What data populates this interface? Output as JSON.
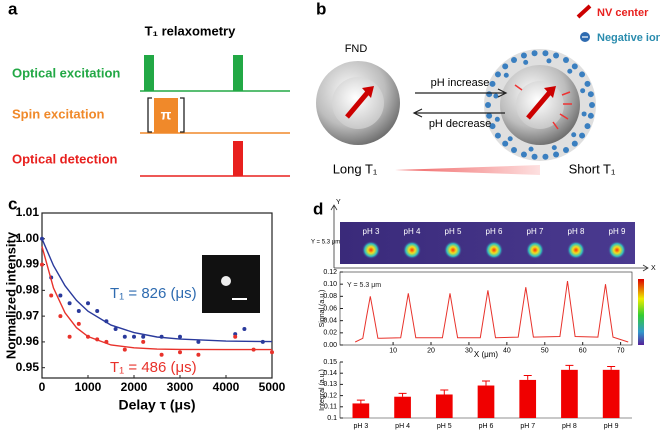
{
  "panels": {
    "a": {
      "label": "a",
      "title": "T₁ relaxometry",
      "rows": [
        "Optical excitation",
        "Spin excitation",
        "Optical detection"
      ],
      "pulse": "π"
    },
    "b": {
      "label": "b",
      "sphere": "FND",
      "legend": [
        "NV center",
        "Negative ion"
      ],
      "arrows": [
        "pH increase",
        "pH decrease"
      ],
      "ends": [
        "Long T₁",
        "Short T₁"
      ]
    },
    "c": {
      "label": "c"
    },
    "d": {
      "label": "d",
      "axes": [
        "Y",
        "X"
      ],
      "row_label": "Y = 5.3 μm",
      "strip": [
        "pH 3",
        "pH 4",
        "pH 5",
        "pH 6",
        "pH 7",
        "pH 8",
        "pH 9"
      ]
    }
  },
  "chart_data": [
    {
      "type": "scatter",
      "x_label": "Delay τ (μs)",
      "y_label": "Normalized intensity",
      "xlim": [
        0,
        5000
      ],
      "ylim": [
        0.946,
        1.01
      ],
      "xticks": [
        0,
        1000,
        2000,
        3000,
        4000,
        5000
      ],
      "yticks": [
        0.95,
        0.96,
        0.97,
        0.98,
        0.99,
        {
          "value": 1.0,
          "label": "1.00"
        },
        1.01
      ],
      "annotations": [
        {
          "text": "T₁ = 826 (μs)",
          "color": "#2e6bb0"
        },
        {
          "text": "T₁ = 486 (μs)",
          "color": "#e8322b"
        }
      ],
      "series": [
        {
          "style": "markers",
          "color": "#2a3a9c",
          "x": [
            0,
            200,
            400,
            600,
            800,
            1000,
            1200,
            1400,
            1600,
            1800,
            2000,
            2200,
            2600,
            3000,
            3400,
            4200,
            4400,
            4800
          ],
          "values": [
            1.0,
            0.985,
            0.978,
            0.975,
            0.972,
            0.975,
            0.972,
            0.968,
            0.965,
            0.962,
            0.962,
            0.962,
            0.962,
            0.962,
            0.96,
            0.963,
            0.965,
            0.96
          ]
        },
        {
          "style": "markers",
          "color": "#e8322b",
          "x": [
            0,
            200,
            400,
            600,
            800,
            1000,
            1200,
            1400,
            1800,
            2200,
            2600,
            3000,
            3400,
            4200,
            4600,
            5000
          ],
          "values": [
            0.99,
            0.978,
            0.97,
            0.962,
            0.967,
            0.962,
            0.961,
            0.96,
            0.957,
            0.96,
            0.955,
            0.956,
            0.955,
            0.962,
            0.957,
            0.956
          ]
        },
        {
          "style": "line",
          "color": "#2a3a9c",
          "x": [
            0,
            250,
            500,
            750,
            1000,
            1500,
            2000,
            2500,
            3000,
            4000,
            5000
          ],
          "values": [
            1.0,
            0.9896,
            0.9818,
            0.9761,
            0.9719,
            0.9665,
            0.9636,
            0.9619,
            0.9611,
            0.9603,
            0.9601
          ]
        },
        {
          "style": "line",
          "color": "#e8322b",
          "x": [
            0,
            250,
            500,
            750,
            1000,
            1500,
            2000,
            2500,
            3000,
            4000,
            5000
          ],
          "values": [
            0.997,
            0.9809,
            0.9713,
            0.9655,
            0.9621,
            0.9588,
            0.9577,
            0.9572,
            0.9571,
            0.957,
            0.957
          ]
        }
      ]
    },
    {
      "type": "line",
      "x_label": "X (μm)",
      "y_label": "Signal (a.u.)",
      "xlim": [
        -4,
        73
      ],
      "ylim": [
        0,
        0.12
      ],
      "xticks": [
        10,
        20,
        30,
        40,
        50,
        60,
        70
      ],
      "yticks": [
        {
          "value": 0,
          "label": "0.00"
        },
        {
          "value": 0.02,
          "label": "0.02"
        },
        {
          "value": 0.04,
          "label": "0.04"
        },
        {
          "value": 0.06,
          "label": "0.06"
        },
        {
          "value": 0.08,
          "label": "0.08"
        },
        {
          "value": 0.1,
          "label": "0.10"
        },
        {
          "value": 0.12,
          "label": "0.12"
        }
      ],
      "annotations": [
        {
          "text": "Y = 5.3 μm",
          "color": "#222"
        }
      ],
      "series": [
        {
          "style": "line",
          "color": "#e8322b",
          "x": [
            0,
            2,
            3,
            4,
            5,
            6,
            12,
            13,
            14,
            15,
            16,
            23,
            24,
            25,
            26,
            27,
            33,
            34,
            35,
            36,
            37,
            43,
            44,
            45,
            46,
            47,
            54,
            55,
            56,
            57,
            58,
            64,
            65,
            66,
            67,
            68,
            72
          ],
          "values": [
            0.005,
            0.011,
            0.046,
            0.08,
            0.046,
            0.011,
            0.012,
            0.048,
            0.085,
            0.048,
            0.012,
            0.012,
            0.048,
            0.085,
            0.048,
            0.012,
            0.012,
            0.051,
            0.09,
            0.051,
            0.012,
            0.013,
            0.054,
            0.095,
            0.054,
            0.013,
            0.014,
            0.059,
            0.105,
            0.059,
            0.014,
            0.013,
            0.056,
            0.1,
            0.056,
            0.013,
            0.005
          ]
        }
      ]
    },
    {
      "type": "bar",
      "y_label": "Integral (a.u.)",
      "ylim": [
        0.1,
        0.15
      ],
      "yticks": [
        0.1,
        0.11,
        0.12,
        0.13,
        0.14,
        0.15
      ],
      "categories": [
        "pH 3",
        "pH 4",
        "pH 5",
        "pH 6",
        "pH 7",
        "pH 8",
        "pH 9"
      ],
      "series": [
        {
          "color": "#f00000",
          "values": [
            0.113,
            0.119,
            0.121,
            0.129,
            0.134,
            0.143,
            0.143
          ],
          "errors": [
            0.003,
            0.003,
            0.004,
            0.004,
            0.004,
            0.004,
            0.003
          ]
        }
      ]
    }
  ]
}
